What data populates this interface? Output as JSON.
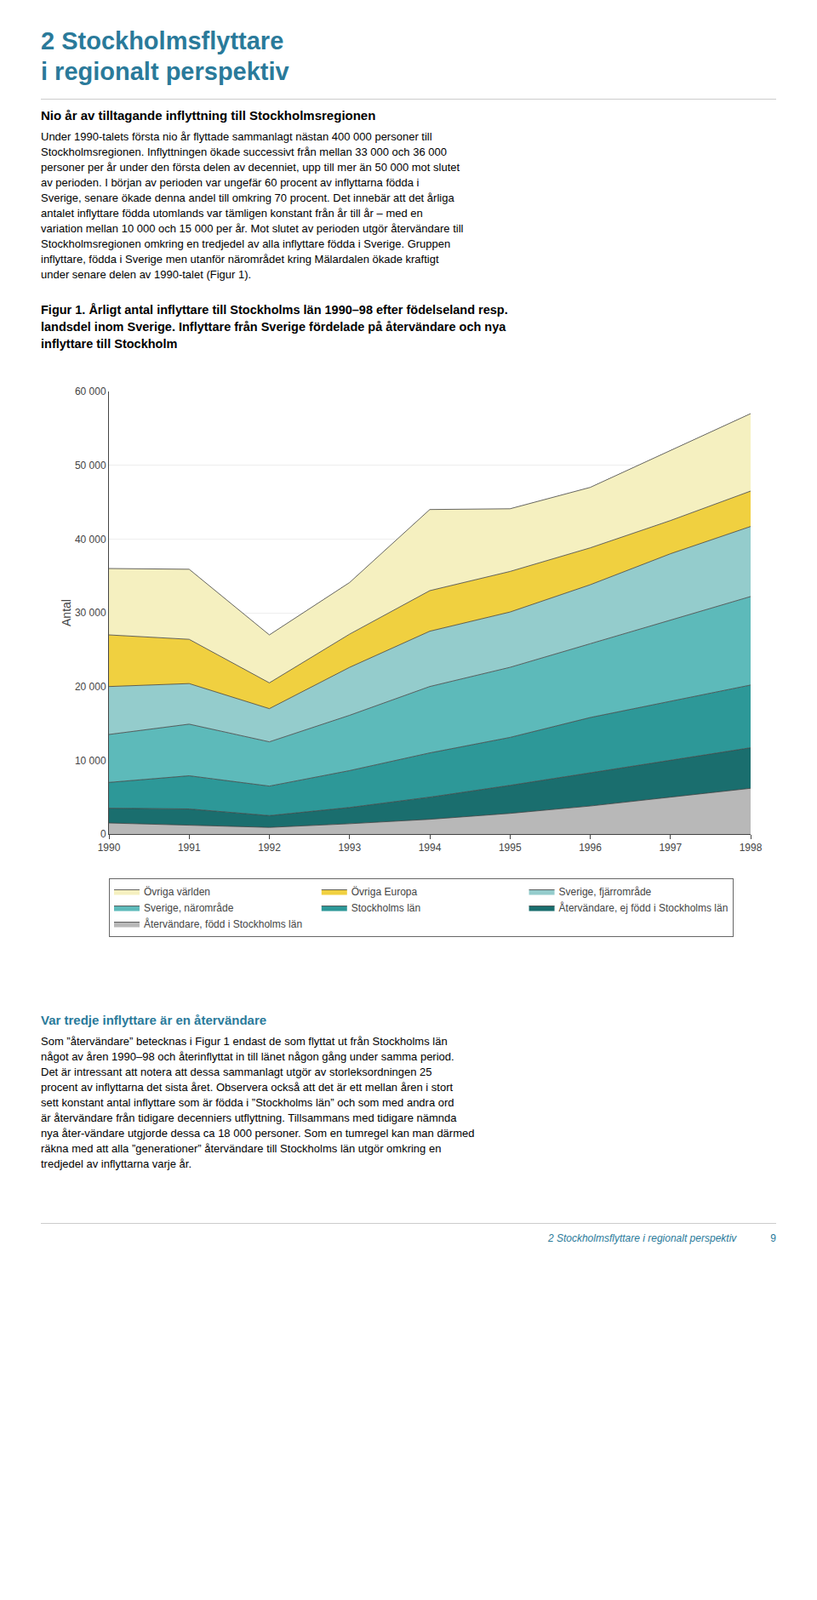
{
  "chart_data": {
    "type": "area",
    "stacked": true,
    "ylabel": "Antal",
    "x": [
      1990,
      1991,
      1992,
      1993,
      1994,
      1995,
      1996,
      1997,
      1998
    ],
    "xlim": [
      1990,
      1998
    ],
    "xticks": [
      1990,
      1991,
      1992,
      1993,
      1994,
      1995,
      1996,
      1997,
      1998
    ],
    "ylim": [
      0,
      60000
    ],
    "yticks": [
      0,
      {
        "value": 10000,
        "label": "10 000"
      },
      {
        "value": 20000,
        "label": "20 000"
      },
      {
        "value": 30000,
        "label": "30 000"
      },
      {
        "value": 40000,
        "label": "40 000"
      },
      {
        "value": 50000,
        "label": "50 000"
      },
      {
        "value": 60000,
        "label": "60 000"
      }
    ],
    "grid": true,
    "legend": "bottom",
    "series": [
      {
        "name": "Återvändare, född i Stockholms län",
        "color": "#b8b8b8",
        "values": [
          1500,
          1200,
          900,
          1400,
          2000,
          2800,
          3800,
          5000,
          6200
        ]
      },
      {
        "name": "Återvändare, ej född i Stockholms län",
        "color": "#1a6e6e",
        "values": [
          2000,
          2200,
          1600,
          2200,
          3000,
          3800,
          4500,
          5000,
          5500
        ]
      },
      {
        "name": "Stockholms län",
        "color": "#2d9898",
        "values": [
          3500,
          4500,
          4000,
          5000,
          6000,
          6500,
          7500,
          8000,
          8500
        ]
      },
      {
        "name": "Sverige, närområde",
        "color": "#5dbaba",
        "values": [
          6500,
          7000,
          6000,
          7500,
          9000,
          9500,
          10000,
          11000,
          12000
        ]
      },
      {
        "name": "Sverige, fjärrområde",
        "color": "#94cccc",
        "values": [
          6500,
          5500,
          4500,
          6500,
          7500,
          7500,
          8000,
          9000,
          9500
        ]
      },
      {
        "name": "Övriga Europa",
        "color": "#f0d040",
        "values": [
          7000,
          6000,
          3500,
          4500,
          5500,
          5500,
          5000,
          4500,
          4800
        ]
      },
      {
        "name": "Övriga världen",
        "color": "#f5f0c0",
        "values": [
          9000,
          9500,
          6500,
          7000,
          11000,
          8500,
          8200,
          9500,
          10500
        ]
      }
    ]
  },
  "page_text": {
    "accent_color": "#2a7a9a",
    "title_lines": [
      "2 Stockholmsflyttare",
      "i regionalt perspektiv"
    ],
    "section_title": "Nio år av tilltagande inflyttning till Stockholmsregionen",
    "body_lines": [
      "Under 1990-talets första nio år flyttade sammanlagt nästan 400 000 personer till",
      "Stockholmsregionen. Inflyttningen ökade successivt från mellan 33 000 och 36 000",
      "personer per år under den första delen av decenniet, upp till mer än 50 000 mot slutet",
      "av perioden. I början av perioden var ungefär 60 procent av inflyttarna födda i",
      "Sverige, senare ökade denna andel till omkring 70 procent. Det innebär att det årliga",
      "antalet inflyttare födda utomlands var tämligen konstant från år till år – med en",
      "variation mellan 10 000 och 15 000 per år. Mot slutet av perioden utgör återvändare till",
      "Stockholmsregionen omkring en tredjedel av alla inflyttare födda i Sverige. Gruppen",
      "inflyttare, födda i Sverige men utanför närområdet kring Mälardalen ökade kraftigt",
      "under senare delen av 1990-talet (Figur 1)."
    ],
    "caption_lines": [
      "Figur 1. Årligt antal inflyttare till Stockholms län 1990–98 efter födelseland resp.",
      "landsdel inom Sverige. Inflyttare från Sverige fördelade på återvändare och nya",
      "inflyttare till Stockholm"
    ],
    "section2_title": "Var tredje inflyttare är en återvändare",
    "body2_lines": [
      "Som ”återvändare” betecknas i Figur 1 endast de som flyttat ut från Stockholms län",
      "något av åren 1990–98 och återinflyttat in till länet någon gång under samma period.",
      "Det är intressant att notera att dessa sammanlagt utgör av storleksordningen 25",
      "procent av inflyttarna det sista året. Observera också att det är ett mellan åren i stort",
      "sett konstant antal inflyttare som är födda i ”Stockholms län” och som med andra ord",
      "är återvändare från tidigare decenniers utflyttning. Tillsammans med tidigare nämnda",
      "nya åter-vändare utgjorde dessa ca 18 000 personer. Som en tumregel kan man därmed",
      "räkna med att alla ”generationer” återvändare till Stockholms län utgör omkring en",
      "tredjedel av inflyttarna varje år."
    ],
    "footer_text": "2 Stockholmsflyttare i regionalt perspektiv",
    "footer_page": "9"
  }
}
